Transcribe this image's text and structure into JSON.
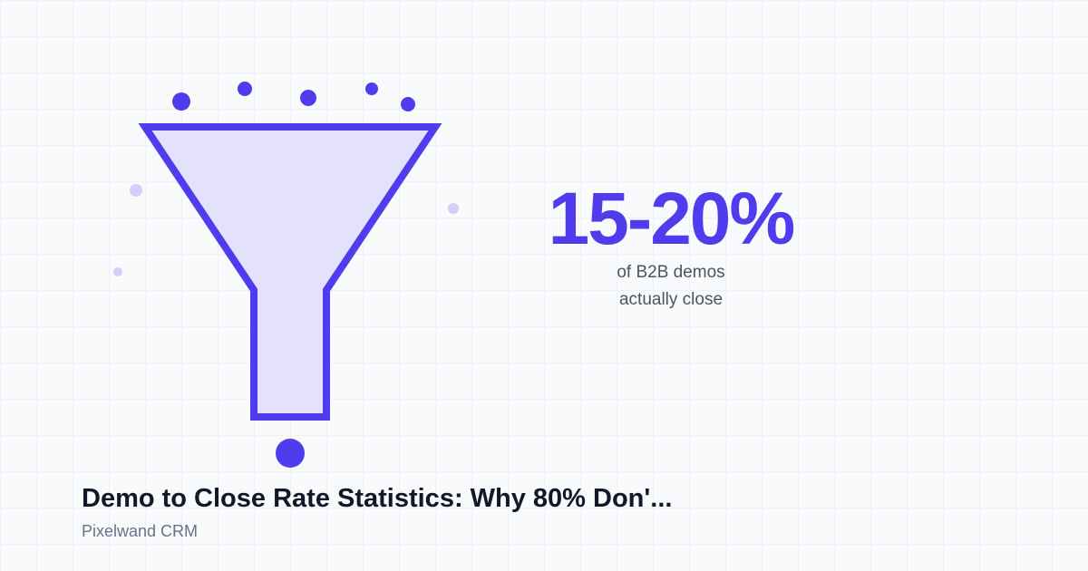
{
  "stat": {
    "value": "15-20%",
    "caption_line1": "of B2B demos",
    "caption_line2": "actually close"
  },
  "title": "Demo to Close Rate Statistics: Why 80% Don'...",
  "brand": "Pixelwand CRM",
  "illustration": {
    "icon": "funnel-icon",
    "colors": {
      "accent": "#4f3ced",
      "funnel_fill": "#e4e1fd",
      "faded_dot": "#d3cefb"
    }
  }
}
